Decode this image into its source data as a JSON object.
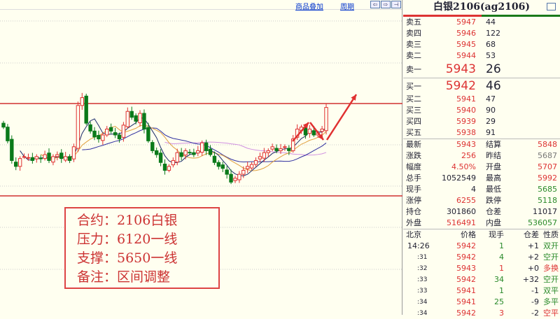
{
  "toolbar": {
    "add_product": "商品叠加",
    "period": "周期",
    "nav_left": "⇦",
    "nav_right": "⇨",
    "nav_end": "⊣"
  },
  "note": {
    "lines": [
      "合约：2106白银",
      "压力：6120一线",
      "支撑：5650一线",
      "备注：区间调整"
    ]
  },
  "chart_data": {
    "type": "candlestick",
    "resistance": 6120,
    "support": 5650,
    "closes": [
      6000,
      5930,
      5830,
      5800,
      5840,
      5850,
      5845,
      5830,
      5850,
      5840,
      5860,
      5830,
      5850,
      5860,
      5840,
      5850,
      5830,
      5900,
      6110,
      6150,
      6020,
      5980,
      5950,
      5940,
      5960,
      5990,
      5980,
      5960,
      5940,
      6010,
      6080,
      6050,
      6030,
      6070,
      5990,
      5930,
      5880,
      5860,
      5820,
      5780,
      5800,
      5830,
      5870,
      5850,
      5880,
      5870,
      5860,
      5880,
      5920,
      5880,
      5860,
      5820,
      5800,
      5790,
      5760,
      5720,
      5740,
      5760,
      5780,
      5800,
      5810,
      5830,
      5850,
      5870,
      5880,
      5900,
      5880,
      5890,
      5900,
      5880,
      5940,
      5990,
      6000,
      5960,
      5990,
      5960,
      5970,
      5990,
      6100
    ],
    "colors": {
      "up": "#e03030",
      "down": "#0a7a1a",
      "ma5": "#1a2a6a",
      "ma10": "#e0a040",
      "ma20": "#3030a0",
      "ma40": "#d090e0",
      "lines": "#d03030"
    }
  },
  "panel": {
    "title": "白银2106(ag2106)",
    "asks": [
      {
        "label": "卖五",
        "price": "5947",
        "vol": "44"
      },
      {
        "label": "卖四",
        "price": "5946",
        "vol": "122"
      },
      {
        "label": "卖三",
        "price": "5945",
        "vol": "68"
      },
      {
        "label": "卖二",
        "price": "5944",
        "vol": "53"
      },
      {
        "label": "卖一",
        "price": "5943",
        "vol": "26"
      }
    ],
    "bids": [
      {
        "label": "买一",
        "price": "5942",
        "vol": "46"
      },
      {
        "label": "买二",
        "price": "5941",
        "vol": "47"
      },
      {
        "label": "买三",
        "price": "5940",
        "vol": "90"
      },
      {
        "label": "买四",
        "price": "5939",
        "vol": "29"
      },
      {
        "label": "买五",
        "price": "5938",
        "vol": "91"
      }
    ],
    "stats": [
      {
        "l1": "最新",
        "v1": "5943",
        "c1": "red",
        "l2": "结算",
        "v2": "5848",
        "c2": "red"
      },
      {
        "l1": "涨跌",
        "v1": "256",
        "c1": "red",
        "l2": "昨结",
        "v2": "5687",
        "c2": "gry"
      },
      {
        "l1": "幅度",
        "v1": "4.50%",
        "c1": "red",
        "l2": "开盘",
        "v2": "5707",
        "c2": "red"
      },
      {
        "l1": "总手",
        "v1": "1052549",
        "c1": "",
        "l2": "最高",
        "v2": "5992",
        "c2": "red"
      },
      {
        "l1": "现手",
        "v1": "4",
        "c1": "",
        "l2": "最低",
        "v2": "5685",
        "c2": "grn"
      },
      {
        "l1": "涨停",
        "v1": "6255",
        "c1": "red",
        "l2": "跌停",
        "v2": "5118",
        "c2": "grn"
      },
      {
        "l1": "持仓",
        "v1": "301860",
        "c1": "",
        "l2": "仓差",
        "v2": "11017",
        "c2": ""
      },
      {
        "l1": "外盘",
        "v1": "516491",
        "c1": "red",
        "l2": "内盘",
        "v2": "536057",
        "c2": "grn"
      }
    ],
    "ticks_header": [
      "北京",
      "价格",
      "现手",
      "仓差",
      "性质"
    ],
    "ticks": [
      {
        "t": "14:26",
        "p": "5942",
        "v": "1",
        "vc": "grn",
        "d": "+1",
        "n": "双开",
        "nc": "grn"
      },
      {
        "t": ":31",
        "p": "5942",
        "v": "4",
        "vc": "grn",
        "d": "+2",
        "n": "空开",
        "nc": "grn"
      },
      {
        "t": ":32",
        "p": "5943",
        "v": "1",
        "vc": "red",
        "d": "+0",
        "n": "多换",
        "nc": "red"
      },
      {
        "t": ":33",
        "p": "5942",
        "v": "34",
        "vc": "grn",
        "d": "+32",
        "n": "空开",
        "nc": "grn"
      },
      {
        "t": ":33",
        "p": "5941",
        "v": "1",
        "vc": "grn",
        "d": "-1",
        "n": "双平",
        "nc": "grn"
      },
      {
        "t": ":34",
        "p": "5941",
        "v": "25",
        "vc": "grn",
        "d": "-9",
        "n": "多平",
        "nc": "grn"
      },
      {
        "t": ":34",
        "p": "5942",
        "v": "3",
        "vc": "red",
        "d": "-2",
        "n": "空平",
        "nc": "red"
      }
    ]
  }
}
